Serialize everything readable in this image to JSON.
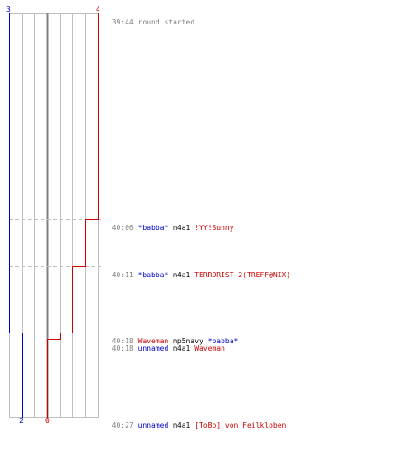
{
  "colors": {
    "blue": "#0000cc",
    "red": "#cc0000",
    "grid": "#c0c0c0",
    "dash": "#c0c0c0",
    "center": "#808080",
    "text_gray": "#808080"
  },
  "score_labels": {
    "blue_start": "3",
    "red_start": "4",
    "blue_end": "2",
    "red_end": "0"
  },
  "events": [
    {
      "time": "39:44",
      "text": "round started",
      "kind": "start"
    },
    {
      "time": "40:06",
      "killer": "*babba*",
      "killer_team": "blue",
      "weapon": "m4a1",
      "victim": "!YY!Sunny",
      "victim_team": "red"
    },
    {
      "time": "40:11",
      "killer": "*babba*",
      "killer_team": "blue",
      "weapon": "m4a1",
      "victim": "TERRORIST-2(TREFF@NIX)",
      "victim_team": "red"
    },
    {
      "time": "40:18",
      "killer": "Waveman",
      "killer_team": "red",
      "weapon": "mp5navy",
      "victim": "*babba*",
      "victim_team": "blue"
    },
    {
      "time": "40:18",
      "killer": "unnamed",
      "killer_team": "blue",
      "weapon": "m4a1",
      "victim": "Waveman",
      "victim_team": "red"
    },
    {
      "time": "40:27",
      "killer": "unnamed",
      "killer_team": "blue",
      "weapon": "m4a1",
      "victim": "[ToBo] von Feilkloben",
      "victim_team": "red"
    }
  ]
}
